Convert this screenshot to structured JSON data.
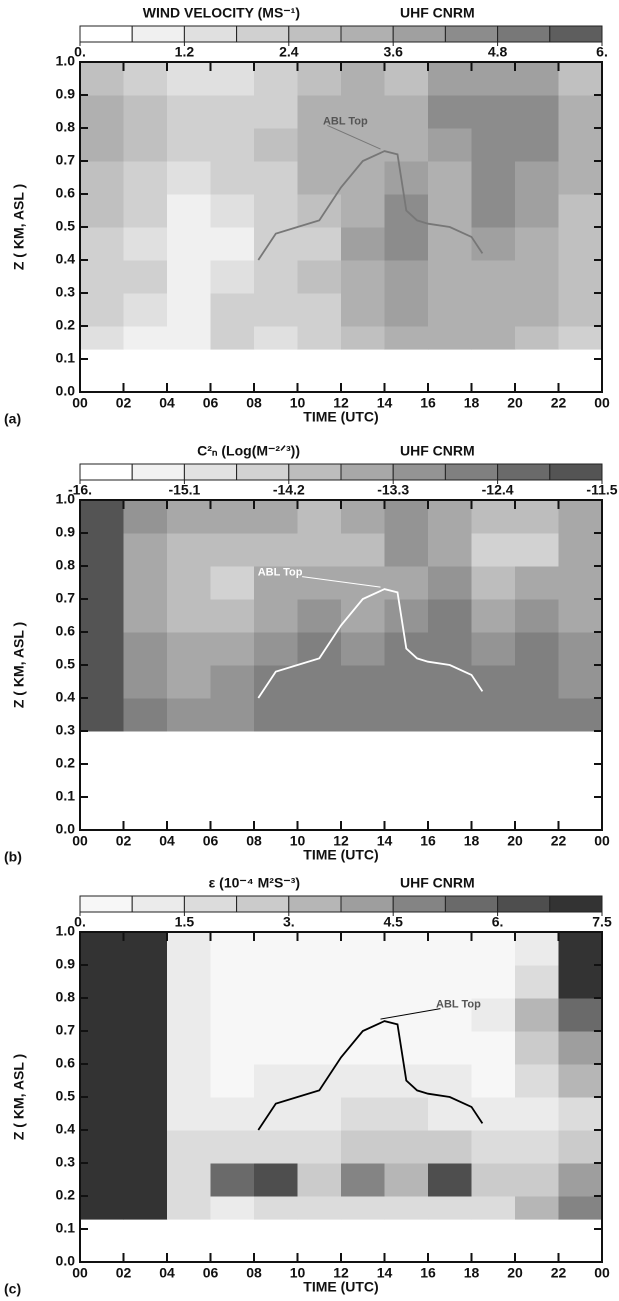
{
  "chart_data": [
    {
      "type": "heatmap",
      "title": "WIND VELOCITY  (MS⁻¹)",
      "subtitle": "UHF CNRM",
      "panel_label": "(a)",
      "xlabel": "TIME  (UTC)",
      "ylabel": "Z ( KM, ASL )",
      "xlim": [
        0,
        24
      ],
      "ylim": [
        0,
        1
      ],
      "xticks": [
        {
          "value": 0,
          "label": "00"
        },
        {
          "value": 2,
          "label": "02"
        },
        {
          "value": 4,
          "label": "04"
        },
        {
          "value": 6,
          "label": "06"
        },
        {
          "value": 8,
          "label": "08"
        },
        10,
        12,
        14,
        16,
        18,
        20,
        22,
        {
          "value": 24,
          "label": "00"
        }
      ],
      "yticks": [
        {
          "value": 0,
          "label": "0.0"
        },
        0.1,
        0.2,
        0.3,
        0.4,
        0.5,
        0.6,
        0.7,
        0.8,
        0.9,
        {
          "value": 1,
          "label": "1.0"
        }
      ],
      "clim": [
        0,
        6
      ],
      "cticks": [
        {
          "value": 0,
          "label": "0."
        },
        1.2,
        2.4,
        3.6,
        4.8,
        {
          "value": 6,
          "label": "6."
        }
      ],
      "colors": [
        "#ffffff",
        "#f0f0f0",
        "#e0e0e0",
        "#d0d0d0",
        "#c0c0c0",
        "#b0b0b0",
        "#a0a0a0",
        "#8c8c8c",
        "#787878",
        "#5e5e5e"
      ],
      "xedges": [
        0,
        2,
        4,
        6,
        8,
        10,
        12,
        14,
        16,
        18,
        20,
        22,
        24
      ],
      "yedges": [
        0.13,
        0.2,
        0.3,
        0.4,
        0.5,
        0.6,
        0.7,
        0.8,
        0.9,
        1.0
      ],
      "z": [
        [
          1.5,
          1.2,
          1.0,
          1.8,
          1.5,
          2.0,
          2.5,
          3.5,
          3.0,
          3.0,
          2.5,
          2.0
        ],
        [
          2.0,
          1.5,
          1.2,
          2.0,
          1.8,
          2.2,
          3.0,
          4.0,
          3.5,
          3.2,
          3.0,
          2.5
        ],
        [
          2.2,
          1.8,
          1.0,
          1.5,
          2.0,
          2.5,
          3.5,
          3.8,
          3.0,
          3.5,
          3.2,
          2.8
        ],
        [
          1.8,
          1.5,
          0.8,
          1.2,
          1.8,
          2.2,
          3.8,
          4.5,
          3.2,
          3.8,
          3.5,
          2.5
        ],
        [
          2.5,
          2.0,
          1.2,
          1.5,
          2.0,
          2.8,
          3.5,
          4.2,
          3.0,
          4.2,
          3.8,
          2.8
        ],
        [
          2.8,
          2.2,
          1.5,
          1.8,
          2.2,
          3.0,
          3.2,
          3.8,
          3.5,
          4.5,
          4.0,
          3.0
        ],
        [
          3.0,
          2.5,
          1.8,
          2.0,
          2.5,
          3.5,
          3.0,
          3.5,
          4.0,
          4.8,
          4.5,
          3.2
        ],
        [
          3.2,
          2.8,
          2.0,
          1.8,
          2.2,
          3.2,
          3.2,
          3.0,
          4.2,
          4.5,
          4.2,
          3.0
        ],
        [
          2.5,
          2.2,
          1.5,
          1.5,
          1.8,
          2.5,
          3.0,
          2.8,
          3.8,
          4.0,
          3.8,
          2.5
        ]
      ],
      "series": [
        {
          "name": "ABL Top",
          "color": "#777777",
          "x": [
            8.2,
            9,
            10,
            11,
            12,
            13,
            14,
            14.6,
            15,
            15.5,
            16,
            17,
            18,
            18.5
          ],
          "values": [
            0.4,
            0.48,
            0.5,
            0.52,
            0.62,
            0.7,
            0.73,
            0.72,
            0.55,
            0.52,
            0.51,
            0.5,
            0.47,
            0.42
          ]
        }
      ]
    },
    {
      "type": "heatmap",
      "title": "C²ₙ (Log(M⁻²ᐟ³))",
      "subtitle": "UHF CNRM",
      "panel_label": "(b)",
      "xlabel": "TIME  (UTC)",
      "ylabel": "Z ( KM, ASL )",
      "xlim": [
        0,
        24
      ],
      "ylim": [
        0,
        1
      ],
      "xticks": [
        {
          "value": 0,
          "label": "00"
        },
        {
          "value": 2,
          "label": "02"
        },
        {
          "value": 4,
          "label": "04"
        },
        {
          "value": 6,
          "label": "06"
        },
        {
          "value": 8,
          "label": "08"
        },
        10,
        12,
        14,
        16,
        18,
        20,
        22,
        {
          "value": 24,
          "label": "00"
        }
      ],
      "yticks": [
        {
          "value": 0,
          "label": "0.0"
        },
        0.1,
        0.2,
        0.3,
        0.4,
        0.5,
        0.6,
        0.7,
        0.8,
        0.9,
        {
          "value": 1,
          "label": "1.0"
        }
      ],
      "clim": [
        -16,
        -11.5
      ],
      "cticks": [
        {
          "value": -16,
          "label": "-16."
        },
        -15.1,
        -14.2,
        -13.3,
        -12.4,
        -11.5
      ],
      "colors": [
        "#ffffff",
        "#f2f2f2",
        "#e2e2e2",
        "#d2d2d2",
        "#bdbdbd",
        "#a8a8a8",
        "#949494",
        "#808080",
        "#6a6a6a",
        "#545454"
      ],
      "xedges": [
        0,
        2,
        4,
        6,
        8,
        10,
        12,
        14,
        16,
        18,
        20,
        22,
        24
      ],
      "yedges": [
        0.3,
        0.4,
        0.5,
        0.6,
        0.7,
        0.8,
        0.9,
        1.0
      ],
      "z": [
        [
          -11.8,
          -12.5,
          -13.0,
          -13.0,
          -12.8,
          -12.8,
          -12.6,
          -12.6,
          -12.8,
          -12.6,
          -12.6,
          -12.8
        ],
        [
          -11.8,
          -13.0,
          -13.4,
          -13.2,
          -12.8,
          -12.6,
          -12.8,
          -12.4,
          -12.6,
          -12.8,
          -12.4,
          -13.0
        ],
        [
          -11.8,
          -13.2,
          -13.6,
          -13.4,
          -13.0,
          -12.8,
          -13.0,
          -12.5,
          -12.5,
          -13.0,
          -12.8,
          -13.2
        ],
        [
          -11.8,
          -13.4,
          -14.0,
          -13.8,
          -13.4,
          -13.2,
          -13.4,
          -13.0,
          -12.8,
          -13.4,
          -13.2,
          -13.4
        ],
        [
          -11.8,
          -13.6,
          -14.2,
          -14.4,
          -13.6,
          -13.4,
          -13.6,
          -13.4,
          -13.2,
          -14.0,
          -13.6,
          -13.6
        ],
        [
          -11.8,
          -13.4,
          -14.0,
          -14.2,
          -13.8,
          -14.2,
          -13.8,
          -13.2,
          -13.4,
          -14.4,
          -14.6,
          -13.6
        ],
        [
          -11.8,
          -13.2,
          -13.6,
          -13.6,
          -13.6,
          -14.0,
          -13.6,
          -13.2,
          -13.4,
          -13.8,
          -14.0,
          -13.4
        ]
      ],
      "series": [
        {
          "name": "ABL Top",
          "color": "#ffffff",
          "x": [
            8.2,
            9,
            10,
            11,
            12,
            13,
            14,
            14.6,
            15,
            15.5,
            16,
            17,
            18,
            18.5
          ],
          "values": [
            0.4,
            0.48,
            0.5,
            0.52,
            0.62,
            0.7,
            0.73,
            0.72,
            0.55,
            0.52,
            0.51,
            0.5,
            0.47,
            0.42
          ]
        }
      ]
    },
    {
      "type": "heatmap",
      "title": "ε  (10⁻⁴ M²S⁻³)",
      "subtitle": "UHF CNRM",
      "panel_label": "(c)",
      "xlabel": "TIME  (UTC)",
      "ylabel": "Z ( KM, ASL )",
      "xlim": [
        0,
        24
      ],
      "ylim": [
        0,
        1
      ],
      "xticks": [
        {
          "value": 0,
          "label": "00"
        },
        {
          "value": 2,
          "label": "02"
        },
        {
          "value": 4,
          "label": "04"
        },
        {
          "value": 6,
          "label": "06"
        },
        {
          "value": 8,
          "label": "08"
        },
        10,
        12,
        14,
        16,
        18,
        20,
        22,
        {
          "value": 24,
          "label": "00"
        }
      ],
      "yticks": [
        {
          "value": 0,
          "label": "0.0"
        },
        0.1,
        0.2,
        0.3,
        0.4,
        0.5,
        0.6,
        0.7,
        0.8,
        0.9,
        {
          "value": 1,
          "label": "1.0"
        }
      ],
      "clim": [
        0,
        7.5
      ],
      "cticks": [
        {
          "value": 0,
          "label": "0."
        },
        1.5,
        {
          "value": 3,
          "label": "3."
        },
        4.5,
        {
          "value": 6,
          "label": "6."
        },
        7.5
      ],
      "colors": [
        "#f7f7f7",
        "#ebebeb",
        "#dcdcdc",
        "#cbcbcb",
        "#b6b6b6",
        "#9e9e9e",
        "#848484",
        "#6a6a6a",
        "#4e4e4e",
        "#333333"
      ],
      "xedges": [
        0,
        2,
        4,
        6,
        8,
        10,
        12,
        14,
        16,
        18,
        20,
        22,
        24
      ],
      "yedges": [
        0.13,
        0.2,
        0.3,
        0.4,
        0.5,
        0.6,
        0.7,
        0.8,
        0.9,
        1.0
      ],
      "z": [
        [
          7.5,
          7.5,
          1.5,
          1.2,
          1.5,
          1.5,
          1.8,
          2.0,
          2.2,
          1.8,
          3.5,
          4.5
        ],
        [
          7.5,
          7.5,
          1.8,
          5.5,
          6.5,
          2.5,
          4.5,
          3.5,
          6.5,
          2.5,
          2.5,
          4.0
        ],
        [
          7.5,
          7.5,
          1.5,
          1.5,
          2.0,
          1.5,
          2.5,
          2.5,
          2.5,
          1.5,
          1.5,
          2.5
        ],
        [
          7.5,
          7.5,
          1.2,
          0.8,
          1.0,
          1.2,
          1.5,
          1.5,
          1.2,
          1.0,
          1.2,
          2.0
        ],
        [
          7.5,
          7.5,
          1.0,
          0.6,
          0.8,
          0.8,
          0.8,
          1.0,
          0.8,
          0.6,
          1.5,
          3.0
        ],
        [
          7.5,
          7.5,
          1.2,
          0.5,
          0.5,
          0.6,
          0.5,
          0.5,
          0.5,
          0.6,
          2.5,
          4.0
        ],
        [
          7.5,
          7.5,
          1.0,
          0.5,
          0.5,
          0.5,
          0.5,
          0.5,
          0.5,
          0.8,
          3.0,
          5.5
        ],
        [
          7.5,
          7.5,
          0.8,
          0.3,
          0.5,
          0.5,
          0.5,
          0.4,
          0.5,
          0.5,
          1.5,
          7.5
        ],
        [
          7.5,
          7.5,
          1.0,
          0.5,
          0.5,
          0.5,
          0.5,
          0.5,
          0.5,
          0.5,
          1.0,
          7.5
        ]
      ],
      "series": [
        {
          "name": "ABL Top",
          "color": "#000000",
          "x": [
            8.2,
            9,
            10,
            11,
            12,
            13,
            14,
            14.6,
            15,
            15.5,
            16,
            17,
            18,
            18.5
          ],
          "values": [
            0.4,
            0.48,
            0.5,
            0.52,
            0.62,
            0.7,
            0.73,
            0.72,
            0.55,
            0.52,
            0.51,
            0.5,
            0.47,
            0.42
          ]
        }
      ]
    }
  ]
}
